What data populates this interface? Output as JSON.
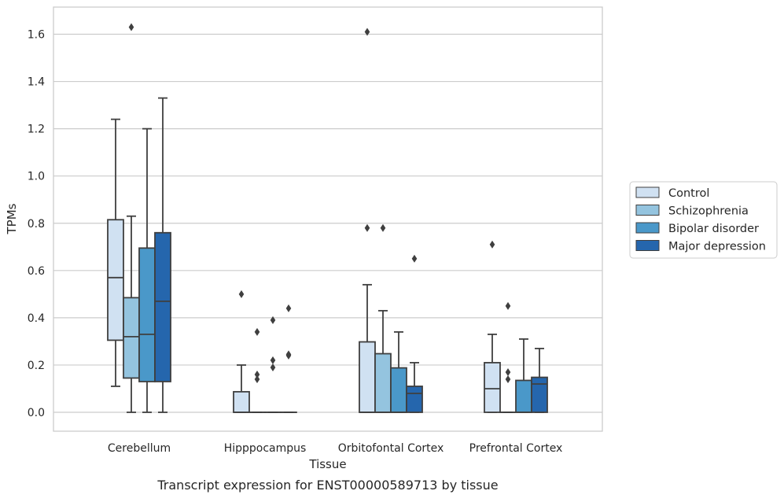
{
  "chart_data": {
    "type": "boxplot",
    "xlabel": "Tissue",
    "ylabel": "TPMs",
    "caption": "Transcript expression for ENST00000589713 by tissue",
    "ylim": [
      -0.08,
      1.72
    ],
    "yticks": [
      "0.0",
      "0.2",
      "0.4",
      "0.6",
      "0.8",
      "1.0",
      "1.2",
      "1.4",
      "1.6"
    ],
    "grid": "horizontal",
    "legend_position": "right",
    "categories": [
      "Cerebellum",
      "Hipppocampus",
      "Orbitofontal Cortex",
      "Prefrontal Cortex"
    ],
    "series": [
      {
        "name": "Control",
        "color": "#d0e1f2",
        "boxes": [
          {
            "whislo": 0.11,
            "q1": 0.305,
            "med": 0.57,
            "q3": 0.815,
            "whishi": 1.24,
            "fliers": []
          },
          {
            "whislo": 0.0,
            "q1": 0.0,
            "med": 0.0,
            "q3": 0.087,
            "whishi": 0.2,
            "fliers": [
              0.5
            ]
          },
          {
            "whislo": 0.0,
            "q1": 0.0,
            "med": 0.0,
            "q3": 0.298,
            "whishi": 0.54,
            "fliers": [
              0.78,
              1.61
            ]
          },
          {
            "whislo": 0.0,
            "q1": 0.0,
            "med": 0.1,
            "q3": 0.21,
            "whishi": 0.33,
            "fliers": [
              0.71
            ]
          }
        ]
      },
      {
        "name": "Schizophrenia",
        "color": "#94c4df",
        "boxes": [
          {
            "whislo": 0.0,
            "q1": 0.145,
            "med": 0.32,
            "q3": 0.485,
            "whishi": 0.83,
            "fliers": [
              1.63
            ]
          },
          {
            "whislo": 0.0,
            "q1": 0.0,
            "med": 0.0,
            "q3": 0.0,
            "whishi": 0.0,
            "fliers": [
              0.14,
              0.16,
              0.34
            ]
          },
          {
            "whislo": 0.0,
            "q1": 0.0,
            "med": 0.0,
            "q3": 0.248,
            "whishi": 0.43,
            "fliers": [
              0.78
            ]
          },
          {
            "whislo": 0.0,
            "q1": 0.0,
            "med": 0.0,
            "q3": 0.0,
            "whishi": 0.0,
            "fliers": [
              0.14,
              0.17,
              0.45
            ]
          }
        ]
      },
      {
        "name": "Bipolar disorder",
        "color": "#4a98c9",
        "boxes": [
          {
            "whislo": 0.0,
            "q1": 0.13,
            "med": 0.33,
            "q3": 0.695,
            "whishi": 1.2,
            "fliers": []
          },
          {
            "whislo": 0.0,
            "q1": 0.0,
            "med": 0.0,
            "q3": 0.0,
            "whishi": 0.0,
            "fliers": [
              0.19,
              0.22,
              0.39
            ]
          },
          {
            "whislo": 0.0,
            "q1": 0.0,
            "med": 0.0,
            "q3": 0.188,
            "whishi": 0.34,
            "fliers": []
          },
          {
            "whislo": 0.0,
            "q1": 0.0,
            "med": 0.0,
            "q3": 0.135,
            "whishi": 0.31,
            "fliers": []
          }
        ]
      },
      {
        "name": "Major depression",
        "color": "#2566ad",
        "boxes": [
          {
            "whislo": 0.0,
            "q1": 0.13,
            "med": 0.47,
            "q3": 0.76,
            "whishi": 1.33,
            "fliers": []
          },
          {
            "whislo": 0.0,
            "q1": 0.0,
            "med": 0.0,
            "q3": 0.0,
            "whishi": 0.0,
            "fliers": [
              0.24,
              0.245,
              0.44
            ]
          },
          {
            "whislo": 0.0,
            "q1": 0.0,
            "med": 0.08,
            "q3": 0.11,
            "whishi": 0.21,
            "fliers": [
              0.65
            ]
          },
          {
            "whislo": 0.0,
            "q1": 0.0,
            "med": 0.12,
            "q3": 0.148,
            "whishi": 0.27,
            "fliers": []
          }
        ]
      }
    ]
  }
}
